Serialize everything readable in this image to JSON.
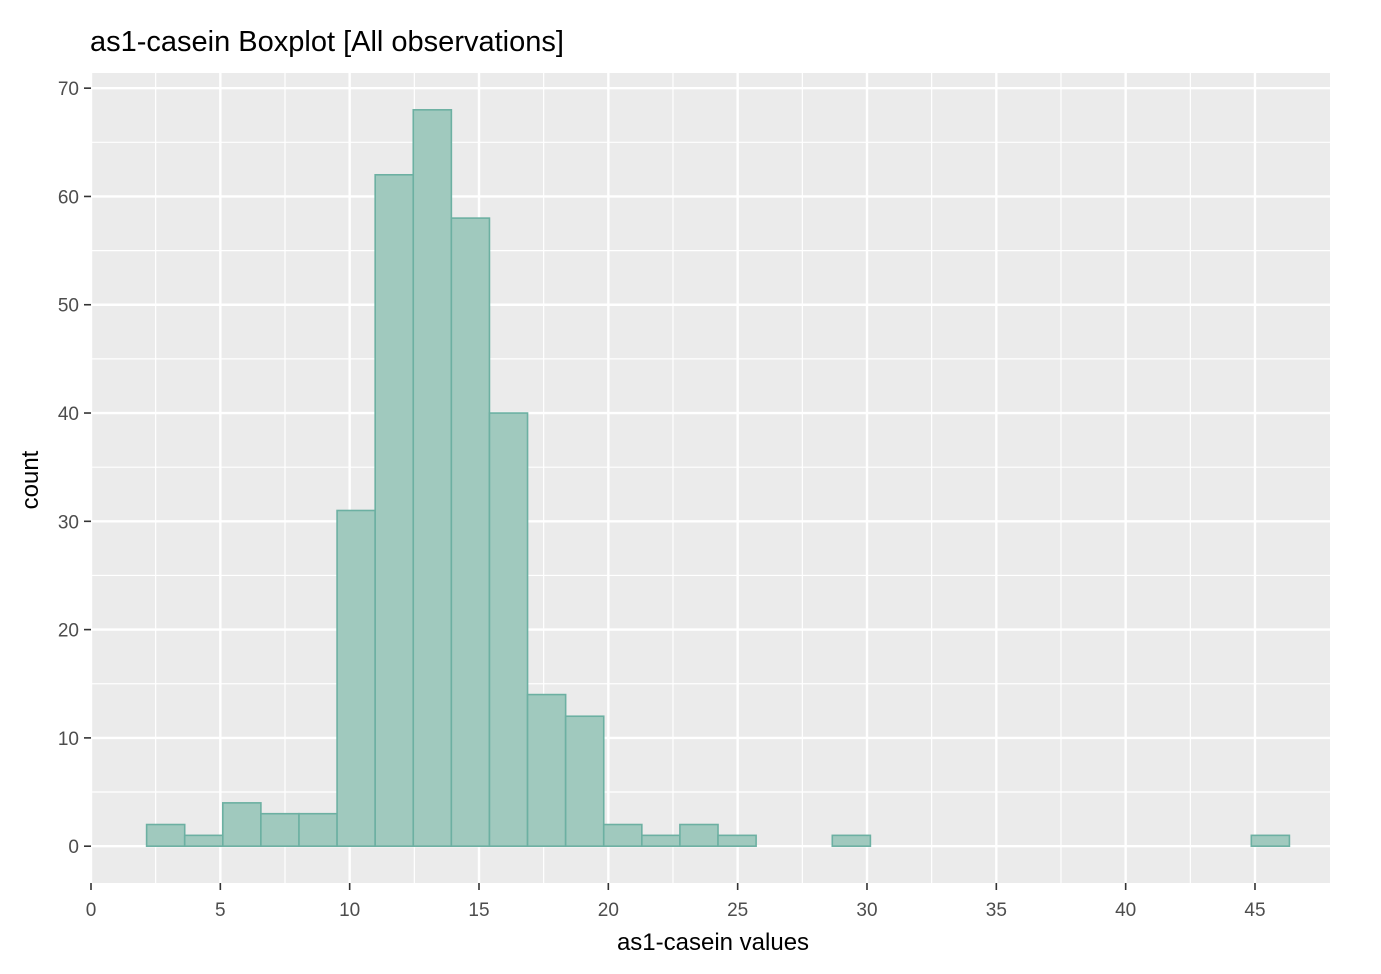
{
  "chart_data": {
    "type": "bar",
    "title": "as1-casein Boxplot [All observations]",
    "xlabel": "as1-casein values",
    "ylabel": "count",
    "xlim": [
      0,
      47.9
    ],
    "ylim": [
      -3.4,
      71.4
    ],
    "x_ticks": [
      0,
      5,
      10,
      15,
      20,
      25,
      30,
      35,
      40,
      45
    ],
    "y_ticks": [
      0,
      10,
      20,
      30,
      40,
      50,
      60,
      70
    ],
    "grid": true,
    "legend": "none",
    "bin_width": 1.4727,
    "bin_start": 2.15,
    "counts": [
      2,
      1,
      4,
      3,
      3,
      31,
      62,
      68,
      58,
      40,
      14,
      12,
      2,
      1,
      2,
      1,
      0,
      0,
      1,
      0,
      0,
      0,
      0,
      0,
      0,
      0,
      0,
      0,
      0,
      1
    ],
    "colors": {
      "panel": "#EBEBEB",
      "grid": "#FFFFFF",
      "bar_fill": "#A0C9BE",
      "bar_stroke": "#6CB0A2",
      "tick_text": "#4D4D4D",
      "tick_mark": "#333333"
    }
  }
}
